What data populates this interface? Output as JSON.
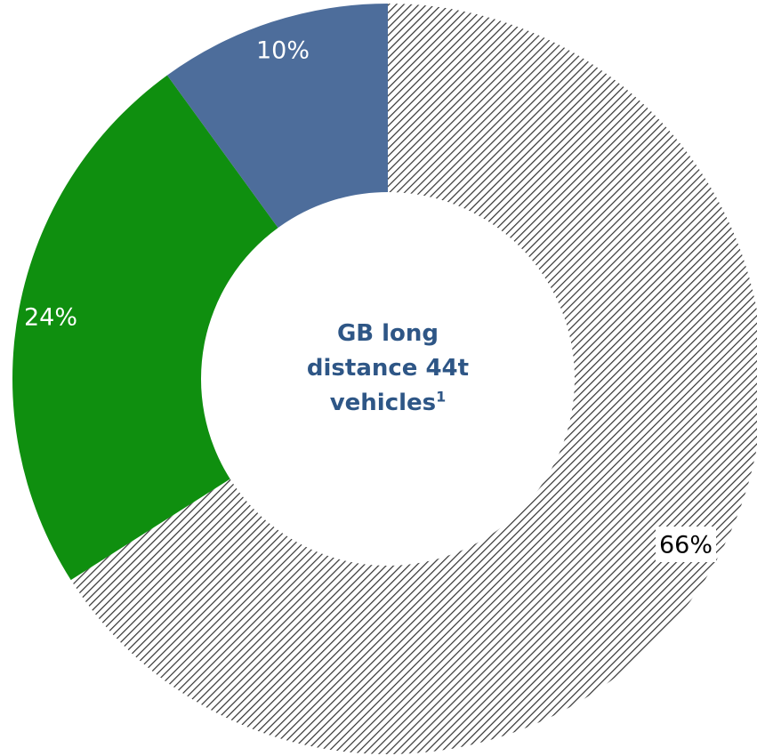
{
  "chart_data": {
    "type": "pie",
    "variant": "donut",
    "title": "",
    "center_text": [
      "GB long",
      "distance 44t",
      "vehicles"
    ],
    "center_text_superscript": "1",
    "slices": [
      {
        "value": 66,
        "label": "66%",
        "color": "#ffffff",
        "pattern": "diagonal-hatch",
        "pattern_color": "#333333"
      },
      {
        "value": 24,
        "label": "24%",
        "color": "#0f8f0f",
        "label_color": "#ffffff"
      },
      {
        "value": 10,
        "label": "10%",
        "color": "#4d6d9b",
        "label_color": "#ffffff"
      }
    ],
    "start_angle": "12 o'clock",
    "direction": "clockwise",
    "legend": "none"
  }
}
